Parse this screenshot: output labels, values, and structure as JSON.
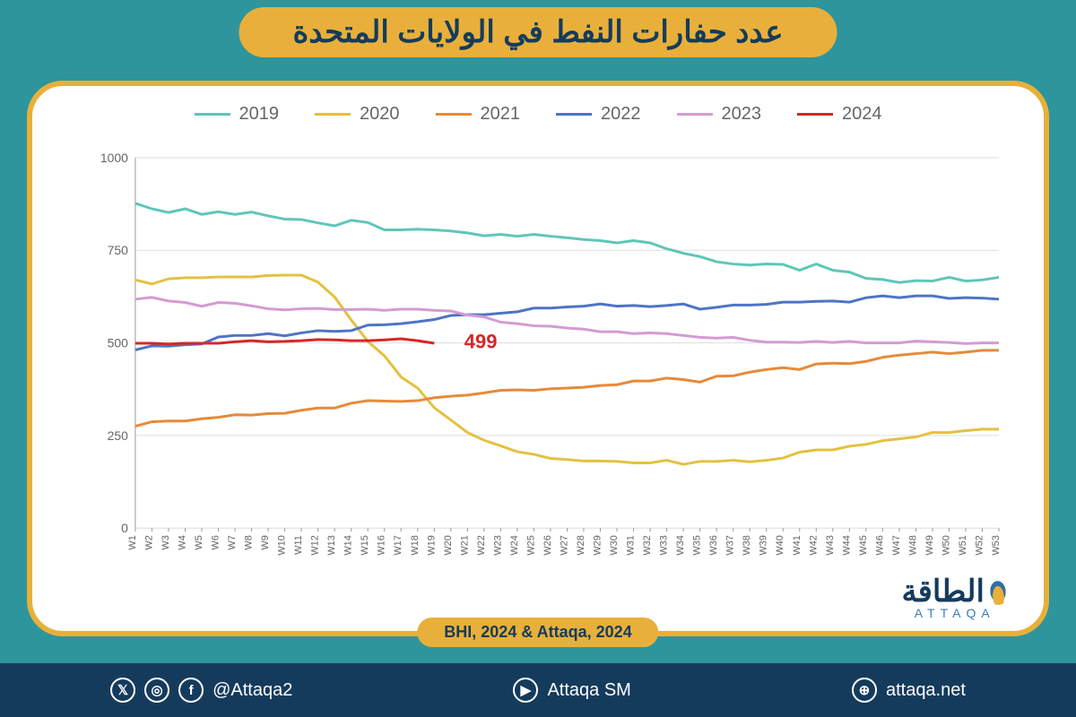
{
  "title": "عدد حفارات النفط في الولايات المتحدة",
  "source": "BHI, 2024 & Attaqa, 2024",
  "logo": {
    "ar": "الطاقة",
    "en": "ATTAQA"
  },
  "footer": {
    "handle": "@Attaqa2",
    "yt": "Attaqa SM",
    "web": "attaqa.net"
  },
  "chart": {
    "type": "line",
    "ylim": [
      0,
      1000
    ],
    "yticks": [
      0,
      250,
      500,
      750,
      1000
    ],
    "xlabels": [
      "W1",
      "W2",
      "W3",
      "W4",
      "W5",
      "W6",
      "W7",
      "W8",
      "W9",
      "W10",
      "W11",
      "W12",
      "W13",
      "W14",
      "W15",
      "W16",
      "W17",
      "W18",
      "W19",
      "W20",
      "W21",
      "W22",
      "W23",
      "W24",
      "W25",
      "W26",
      "W27",
      "W28",
      "W29",
      "W30",
      "W31",
      "W32",
      "W33",
      "W34",
      "W35",
      "W36",
      "W37",
      "W38",
      "W39",
      "W40",
      "W41",
      "W42",
      "W43",
      "W44",
      "W45",
      "W46",
      "W47",
      "W48",
      "W49",
      "W50",
      "W51",
      "W52",
      "W53"
    ],
    "background_color": "#ffffff",
    "grid_color": "#dddddd",
    "axis_color": "#999999",
    "label_color": "#666666",
    "label_fontsize": 14,
    "line_width": 3,
    "annotation": {
      "text": "499",
      "week": 19,
      "value": 505,
      "color": "#d62728"
    },
    "series": [
      {
        "name": "2019",
        "color": "#5fc6b8",
        "values": [
          877,
          862,
          852,
          862,
          847,
          854,
          847,
          853,
          843,
          834,
          833,
          824,
          816,
          831,
          825,
          805,
          805,
          807,
          805,
          802,
          797,
          789,
          793,
          788,
          793,
          788,
          784,
          779,
          776,
          770,
          776,
          770,
          754,
          742,
          733,
          719,
          713,
          710,
          713,
          712,
          696,
          713,
          696,
          691,
          674,
          671,
          663,
          668,
          667,
          677,
          667,
          670,
          677
        ]
      },
      {
        "name": "2020",
        "color": "#e4c13f",
        "values": [
          670,
          659,
          673,
          676,
          676,
          678,
          678,
          678,
          682,
          683,
          683,
          664,
          624,
          562,
          504,
          465,
          408,
          378,
          325,
          292,
          258,
          237,
          222,
          206,
          199,
          188,
          185,
          181,
          181,
          180,
          176,
          176,
          183,
          172,
          180,
          180,
          183,
          179,
          183,
          189,
          205,
          211,
          211,
          221,
          226,
          236,
          241,
          246,
          258,
          258,
          263,
          267,
          267
        ]
      },
      {
        "name": "2021",
        "color": "#e68a3b",
        "values": [
          275,
          287,
          289,
          289,
          295,
          299,
          306,
          305,
          309,
          310,
          318,
          324,
          324,
          337,
          344,
          343,
          342,
          344,
          352,
          356,
          359,
          365,
          372,
          373,
          372,
          376,
          378,
          380,
          385,
          387,
          397,
          397,
          405,
          401,
          394,
          410,
          411,
          421,
          428,
          433,
          428,
          443,
          445,
          444,
          450,
          461,
          467,
          471,
          475,
          471,
          475,
          480,
          480
        ]
      },
      {
        "name": "2022",
        "color": "#4e74c4",
        "values": [
          481,
          492,
          491,
          495,
          497,
          516,
          520,
          520,
          525,
          519,
          527,
          533,
          531,
          533,
          548,
          549,
          552,
          557,
          563,
          574,
          576,
          576,
          580,
          584,
          594,
          594,
          597,
          599,
          605,
          599,
          601,
          598,
          601,
          605,
          591,
          596,
          602,
          602,
          604,
          610,
          610,
          612,
          613,
          610,
          622,
          627,
          622,
          627,
          627,
          620,
          622,
          621,
          618
        ]
      },
      {
        "name": "2023",
        "color": "#d49bd1",
        "values": [
          618,
          623,
          613,
          609,
          599,
          609,
          607,
          600,
          592,
          589,
          592,
          593,
          590,
          590,
          591,
          588,
          591,
          591,
          588,
          586,
          575,
          570,
          556,
          552,
          546,
          545,
          540,
          537,
          530,
          530,
          525,
          527,
          525,
          520,
          515,
          513,
          515,
          507,
          502,
          502,
          501,
          504,
          501,
          504,
          500,
          500,
          500,
          505,
          503,
          501,
          498,
          500,
          500
        ]
      },
      {
        "name": "2024",
        "color": "#d62728",
        "values": [
          499,
          499,
          497,
          499,
          499,
          499,
          503,
          506,
          503,
          504,
          506,
          509,
          508,
          506,
          506,
          508,
          511,
          506,
          499
        ]
      }
    ]
  }
}
